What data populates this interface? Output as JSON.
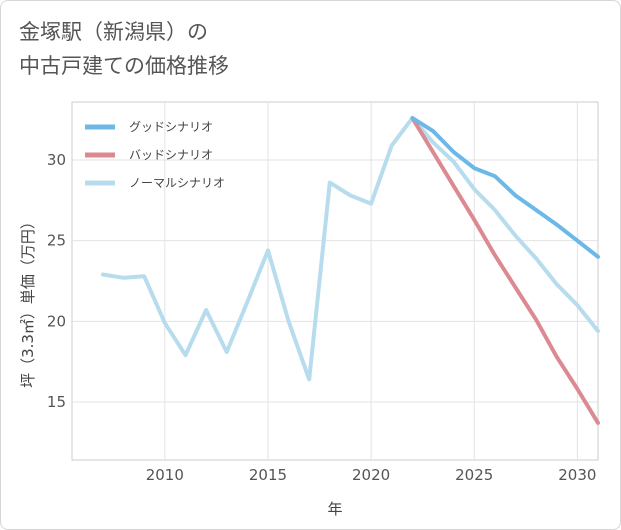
{
  "chart_data": {
    "type": "line",
    "title_line1": "金塚駅（新潟県）の",
    "title_line2": "中古戸建ての価格推移",
    "xlabel": "年",
    "ylabel": "坪（3.3㎡）単価（万円）",
    "xlim": [
      2005.5,
      2031
    ],
    "ylim": [
      11.4,
      33.6
    ],
    "xticks": [
      2010,
      2015,
      2020,
      2025,
      2030
    ],
    "yticks": [
      15,
      20,
      25,
      30
    ],
    "legend_position": "top-left",
    "series": [
      {
        "name": "グッドシナリオ",
        "color": "#6cb8e6",
        "x": [
          2022,
          2023,
          2024,
          2025,
          2026,
          2027,
          2028,
          2029,
          2030,
          2031
        ],
        "values": [
          32.6,
          31.8,
          30.5,
          29.5,
          29.0,
          27.8,
          26.9,
          26.0,
          25.0,
          24.0
        ]
      },
      {
        "name": "バッドシナリオ",
        "color": "#dc8a92",
        "x": [
          2022,
          2023,
          2024,
          2025,
          2026,
          2027,
          2028,
          2029,
          2030,
          2031
        ],
        "values": [
          32.6,
          30.5,
          28.4,
          26.3,
          24.1,
          22.1,
          20.1,
          17.8,
          15.8,
          13.7
        ]
      },
      {
        "name": "ノーマルシナリオ",
        "color": "#b7dced",
        "x": [
          2007,
          2008,
          2009,
          2010,
          2011,
          2012,
          2013,
          2014,
          2015,
          2016,
          2017,
          2018,
          2019,
          2020,
          2021,
          2022,
          2023,
          2024,
          2025,
          2026,
          2027,
          2028,
          2029,
          2030,
          2031
        ],
        "values": [
          22.9,
          22.7,
          22.8,
          19.9,
          17.9,
          20.7,
          18.1,
          21.2,
          24.4,
          20.0,
          16.4,
          28.6,
          27.8,
          27.3,
          30.9,
          32.6,
          31.1,
          29.9,
          28.2,
          26.9,
          25.3,
          23.9,
          22.3,
          21.0,
          19.4
        ]
      }
    ]
  }
}
